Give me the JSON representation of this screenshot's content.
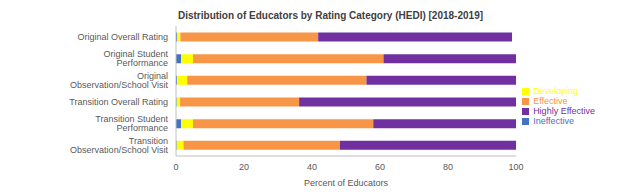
{
  "chart_data": {
    "type": "bar",
    "title": "Distribution of Educators by Rating Category (HEDI) [2018-2019]",
    "orientation": "horizontal",
    "stacked": true,
    "grid": false,
    "legend": "right",
    "x_label": "Percent of Educators",
    "categories": [
      "Original Overall Rating",
      "Original Student Performance",
      "Original Observation/School Visit",
      "Transition Overall Rating",
      "Transition Student Performance",
      "Transition Observation/School Visit"
    ],
    "series": [
      {
        "name": "Ineffective",
        "color": "#4472C4",
        "values": [
          0.3,
          1.5,
          0.3,
          0.2,
          1.5,
          0.2
        ]
      },
      {
        "name": "Developing",
        "color": "#FFFF00",
        "values": [
          1,
          3.5,
          3,
          1,
          3.5,
          2
        ]
      },
      {
        "name": "Effective",
        "color": "#F79646",
        "values": [
          40.5,
          56,
          52.7,
          35,
          53,
          46
        ]
      },
      {
        "name": "Highly Effective",
        "color": "#7030A0",
        "values": [
          57,
          39,
          44,
          63.8,
          42,
          51.8
        ]
      }
    ],
    "xlim": [
      0,
      100
    ],
    "xticks": [
      0,
      20,
      40,
      60,
      80,
      100
    ]
  }
}
